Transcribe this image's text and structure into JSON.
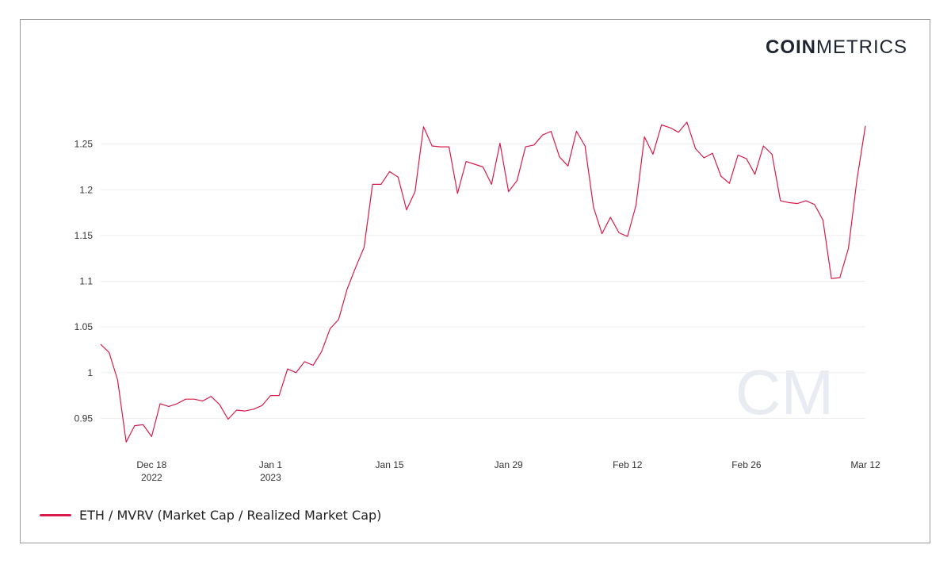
{
  "brand": {
    "part1": "COIN",
    "part2": "METRICS",
    "watermark": "CM"
  },
  "colors": {
    "line": "#d81b4a",
    "grid": "#eeeeee",
    "watermark": "#e8ebf2"
  },
  "chart_data": {
    "type": "line",
    "x_labels": [
      {
        "line1": "Dec 18",
        "line2": "2022",
        "date": "2022-12-18"
      },
      {
        "line1": "Jan 1",
        "line2": "2023",
        "date": "2023-01-01"
      },
      {
        "line1": "Jan 15",
        "line2": "",
        "date": "2023-01-15"
      },
      {
        "line1": "Jan 29",
        "line2": "",
        "date": "2023-01-29"
      },
      {
        "line1": "Feb 12",
        "line2": "",
        "date": "2023-02-12"
      },
      {
        "line1": "Feb 26",
        "line2": "",
        "date": "2023-02-26"
      },
      {
        "line1": "Mar 12",
        "line2": "",
        "date": "2023-03-12"
      }
    ],
    "y_ticks": [
      "0.95",
      "1",
      "1.05",
      "1.1",
      "1.15",
      "1.2",
      "1.25"
    ],
    "ylim": [
      0.913,
      1.307
    ],
    "xlim": [
      "2022-12-12",
      "2023-03-12"
    ],
    "grid": true,
    "legend_position": "bottom-left",
    "series": [
      {
        "name": "ETH / MVRV (Market Cap / Realized Market Cap)",
        "x": [
          "2022-12-12",
          "2022-12-13",
          "2022-12-14",
          "2022-12-15",
          "2022-12-16",
          "2022-12-17",
          "2022-12-18",
          "2022-12-19",
          "2022-12-20",
          "2022-12-21",
          "2022-12-22",
          "2022-12-23",
          "2022-12-24",
          "2022-12-25",
          "2022-12-26",
          "2022-12-27",
          "2022-12-28",
          "2022-12-29",
          "2022-12-30",
          "2022-12-31",
          "2023-01-01",
          "2023-01-02",
          "2023-01-03",
          "2023-01-04",
          "2023-01-05",
          "2023-01-06",
          "2023-01-07",
          "2023-01-08",
          "2023-01-09",
          "2023-01-10",
          "2023-01-11",
          "2023-01-12",
          "2023-01-13",
          "2023-01-14",
          "2023-01-15",
          "2023-01-16",
          "2023-01-17",
          "2023-01-18",
          "2023-01-19",
          "2023-01-20",
          "2023-01-21",
          "2023-01-22",
          "2023-01-23",
          "2023-01-24",
          "2023-01-25",
          "2023-01-26",
          "2023-01-27",
          "2023-01-28",
          "2023-01-29",
          "2023-01-30",
          "2023-01-31",
          "2023-02-01",
          "2023-02-02",
          "2023-02-03",
          "2023-02-04",
          "2023-02-05",
          "2023-02-06",
          "2023-02-07",
          "2023-02-08",
          "2023-02-09",
          "2023-02-10",
          "2023-02-11",
          "2023-02-12",
          "2023-02-13",
          "2023-02-14",
          "2023-02-15",
          "2023-02-16",
          "2023-02-17",
          "2023-02-18",
          "2023-02-19",
          "2023-02-20",
          "2023-02-21",
          "2023-02-22",
          "2023-02-23",
          "2023-02-24",
          "2023-02-25",
          "2023-02-26",
          "2023-02-27",
          "2023-02-28",
          "2023-03-01",
          "2023-03-02",
          "2023-03-03",
          "2023-03-04",
          "2023-03-05",
          "2023-03-06",
          "2023-03-07",
          "2023-03-08",
          "2023-03-09",
          "2023-03-10",
          "2023-03-11",
          "2023-03-12"
        ],
        "values": [
          1.031,
          1.022,
          0.992,
          0.924,
          0.942,
          0.943,
          0.93,
          0.966,
          0.963,
          0.966,
          0.971,
          0.971,
          0.969,
          0.974,
          0.965,
          0.949,
          0.959,
          0.958,
          0.96,
          0.964,
          0.975,
          0.975,
          1.004,
          1.0,
          1.012,
          1.008,
          1.023,
          1.048,
          1.058,
          1.091,
          1.115,
          1.137,
          1.206,
          1.206,
          1.22,
          1.214,
          1.178,
          1.198,
          1.269,
          1.248,
          1.247,
          1.247,
          1.196,
          1.231,
          1.228,
          1.225,
          1.206,
          1.251,
          1.198,
          1.21,
          1.247,
          1.249,
          1.26,
          1.264,
          1.236,
          1.226,
          1.264,
          1.248,
          1.181,
          1.152,
          1.17,
          1.153,
          1.149,
          1.183,
          1.258,
          1.239,
          1.271,
          1.268,
          1.263,
          1.274,
          1.245,
          1.235,
          1.24,
          1.215,
          1.207,
          1.238,
          1.234,
          1.217,
          1.248,
          1.239,
          1.188,
          1.186,
          1.185,
          1.188,
          1.184,
          1.167,
          1.103,
          1.104,
          1.136,
          1.211,
          1.27
        ]
      }
    ]
  }
}
